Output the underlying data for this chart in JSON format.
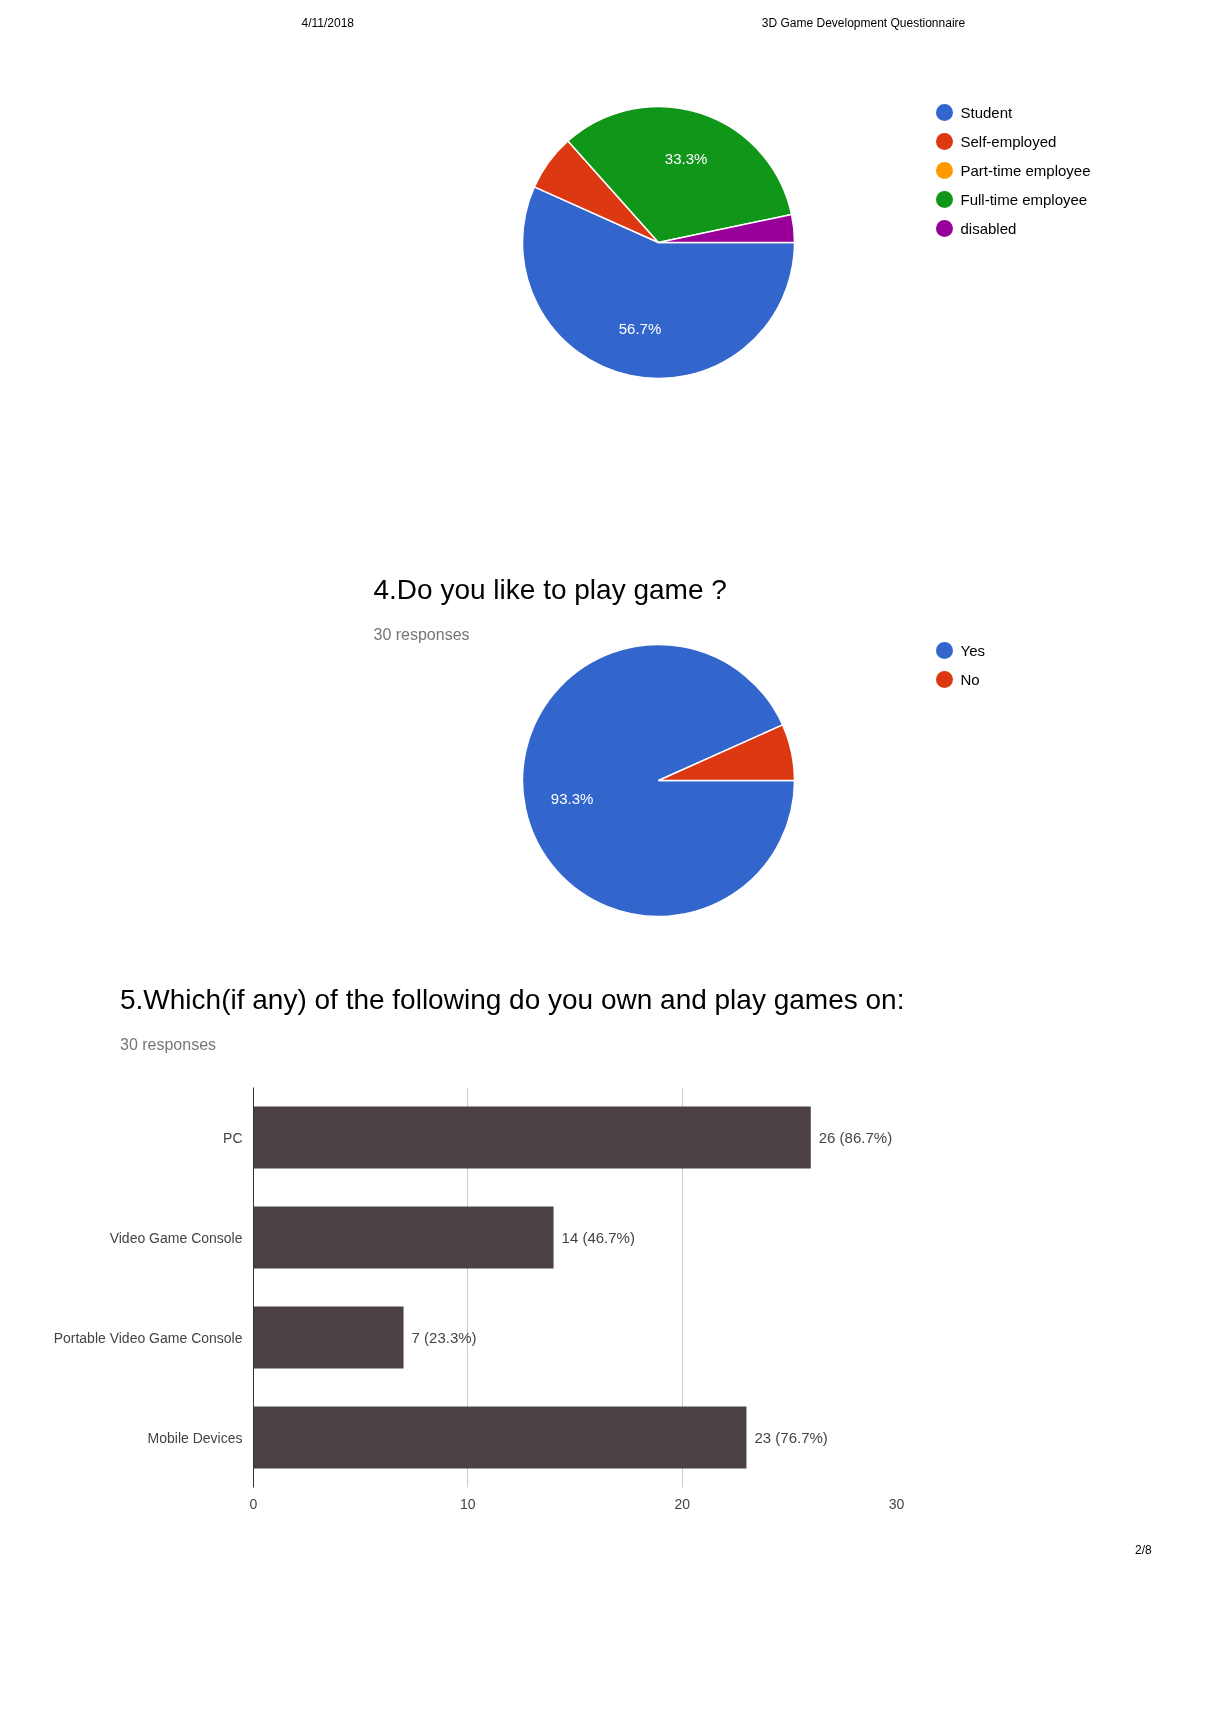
{
  "chart_data": [
    {
      "type": "pie",
      "categories": [
        "Student",
        "Self-employed",
        "Part-time employee",
        "Full-time employee",
        "disabled"
      ],
      "values": [
        56.7,
        6.7,
        0,
        33.3,
        3.3
      ],
      "colors": [
        "#3366cc",
        "#dc3912",
        "#ff9900",
        "#109618",
        "#990099"
      ],
      "value_labels": [
        "56.7%",
        null,
        null,
        "33.3%",
        null
      ],
      "legend": "right",
      "annotations": [
        "4/11/2018",
        "3D Game Development Questionnaire"
      ]
    },
    {
      "type": "pie",
      "title": "4.Do you like to play game ?",
      "subtitle": "30 responses",
      "categories": [
        "Yes",
        "No"
      ],
      "values": [
        93.3,
        6.7
      ],
      "colors": [
        "#3366cc",
        "#dc3912"
      ],
      "value_labels": [
        "93.3%",
        null
      ],
      "legend": "right"
    },
    {
      "type": "bar",
      "orientation": "horizontal",
      "title": "5.Which(if any) of the following do you own and play games on:",
      "subtitle": "30 responses",
      "categories": [
        "PC",
        "Video Game Console",
        "Portable Video Game Console",
        "Mobile Devices"
      ],
      "values": [
        26,
        14,
        7,
        23
      ],
      "color": "#4b4145",
      "xlim": [
        0,
        30
      ],
      "xticks": [
        0,
        10,
        20,
        30
      ],
      "grid": "x",
      "value_labels": [
        "26 (86.7%)",
        "14 (46.7%)",
        "7 (23.3%)",
        "23 (76.7%)"
      ],
      "annotations": [
        "2/8"
      ]
    }
  ]
}
